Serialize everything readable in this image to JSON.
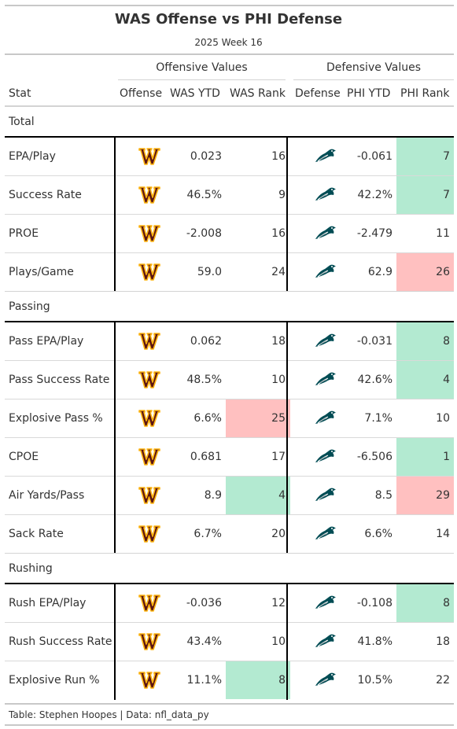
{
  "title": "WAS Offense vs PHI Defense",
  "subtitle": "2025 Week 16",
  "spanners": {
    "offensive": "Offensive Values",
    "defensive": "Defensive Values"
  },
  "columns": {
    "stat": "Stat",
    "offense": "Offense",
    "was_ytd": "WAS YTD",
    "was_rank": "WAS Rank",
    "defense": "Defense",
    "phi_ytd": "PHI YTD",
    "phi_rank": "PHI Rank"
  },
  "colors": {
    "good": "#b3ead1",
    "bad": "#ffc0c0",
    "was_maroon": "#5a1414",
    "was_gold": "#ffb612",
    "phi_green": "#004c54"
  },
  "icons": {
    "offense": "commanders-logo-icon",
    "defense": "eagles-logo-icon"
  },
  "groups": [
    {
      "label": "Total",
      "rows": [
        {
          "stat": "EPA/Play",
          "was_ytd": "0.023",
          "was_rank": "16",
          "phi_ytd": "-0.061",
          "phi_rank": "7",
          "was_color": "",
          "phi_color": "good"
        },
        {
          "stat": "Success Rate",
          "was_ytd": "46.5%",
          "was_rank": "9",
          "phi_ytd": "42.2%",
          "phi_rank": "7",
          "was_color": "",
          "phi_color": "good"
        },
        {
          "stat": "PROE",
          "was_ytd": "-2.008",
          "was_rank": "16",
          "phi_ytd": "-2.479",
          "phi_rank": "11",
          "was_color": "",
          "phi_color": ""
        },
        {
          "stat": "Plays/Game",
          "was_ytd": "59.0",
          "was_rank": "24",
          "phi_ytd": "62.9",
          "phi_rank": "26",
          "was_color": "",
          "phi_color": "bad"
        }
      ]
    },
    {
      "label": "Passing",
      "rows": [
        {
          "stat": "Pass EPA/Play",
          "was_ytd": "0.062",
          "was_rank": "18",
          "phi_ytd": "-0.031",
          "phi_rank": "8",
          "was_color": "",
          "phi_color": "good"
        },
        {
          "stat": "Pass Success Rate",
          "was_ytd": "48.5%",
          "was_rank": "10",
          "phi_ytd": "42.6%",
          "phi_rank": "4",
          "was_color": "",
          "phi_color": "good"
        },
        {
          "stat": "Explosive Pass %",
          "was_ytd": "6.6%",
          "was_rank": "25",
          "phi_ytd": "7.1%",
          "phi_rank": "10",
          "was_color": "bad",
          "phi_color": ""
        },
        {
          "stat": "CPOE",
          "was_ytd": "0.681",
          "was_rank": "17",
          "phi_ytd": "-6.506",
          "phi_rank": "1",
          "was_color": "",
          "phi_color": "good"
        },
        {
          "stat": "Air Yards/Pass",
          "was_ytd": "8.9",
          "was_rank": "4",
          "phi_ytd": "8.5",
          "phi_rank": "29",
          "was_color": "good",
          "phi_color": "bad"
        },
        {
          "stat": "Sack Rate",
          "was_ytd": "6.7%",
          "was_rank": "20",
          "phi_ytd": "6.6%",
          "phi_rank": "14",
          "was_color": "",
          "phi_color": ""
        }
      ]
    },
    {
      "label": "Rushing",
      "rows": [
        {
          "stat": "Rush EPA/Play",
          "was_ytd": "-0.036",
          "was_rank": "12",
          "phi_ytd": "-0.108",
          "phi_rank": "8",
          "was_color": "",
          "phi_color": "good"
        },
        {
          "stat": "Rush Success Rate",
          "was_ytd": "43.4%",
          "was_rank": "10",
          "phi_ytd": "41.8%",
          "phi_rank": "18",
          "was_color": "",
          "phi_color": ""
        },
        {
          "stat": "Explosive Run %",
          "was_ytd": "11.1%",
          "was_rank": "8",
          "phi_ytd": "10.5%",
          "phi_rank": "22",
          "was_color": "good",
          "phi_color": ""
        }
      ]
    }
  ],
  "source": "Table: Stephen Hoopes | Data: nfl_data_py"
}
